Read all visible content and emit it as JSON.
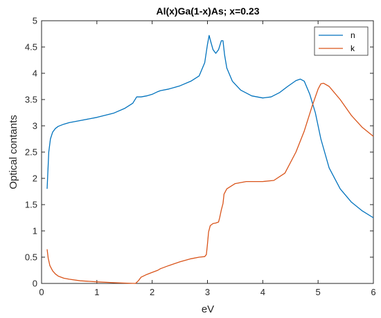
{
  "chart_data": {
    "type": "line",
    "title": "Al(x)Ga(1-x)As; x=0.23",
    "xlabel": "eV",
    "ylabel": "Optical contants",
    "xlim": [
      0,
      6
    ],
    "ylim": [
      0,
      5
    ],
    "xticks": [
      "0",
      "1",
      "2",
      "3",
      "4",
      "5",
      "6"
    ],
    "yticks": [
      "0",
      "0.5",
      "1",
      "1.5",
      "2",
      "2.5",
      "3",
      "3.5",
      "4",
      "4.5",
      "5"
    ],
    "grid": false,
    "legend_position": "top-right",
    "colors": {
      "n": "#0072BD",
      "k": "#D95319"
    },
    "series": [
      {
        "name": "n",
        "x": [
          0.1,
          0.13,
          0.16,
          0.2,
          0.25,
          0.3,
          0.4,
          0.5,
          0.7,
          1.0,
          1.3,
          1.5,
          1.65,
          1.72,
          1.8,
          1.9,
          2.0,
          2.1,
          2.15,
          2.3,
          2.5,
          2.7,
          2.85,
          2.95,
          3.0,
          3.03,
          3.06,
          3.1,
          3.15,
          3.2,
          3.25,
          3.28,
          3.31,
          3.35,
          3.45,
          3.6,
          3.8,
          4.0,
          4.15,
          4.3,
          4.45,
          4.6,
          4.68,
          4.75,
          4.85,
          4.95,
          5.05,
          5.2,
          5.4,
          5.6,
          5.8,
          6.0
        ],
        "y": [
          1.8,
          2.5,
          2.75,
          2.88,
          2.95,
          2.99,
          3.03,
          3.06,
          3.1,
          3.16,
          3.24,
          3.33,
          3.43,
          3.55,
          3.55,
          3.57,
          3.6,
          3.65,
          3.67,
          3.7,
          3.76,
          3.85,
          3.95,
          4.2,
          4.55,
          4.72,
          4.6,
          4.45,
          4.38,
          4.45,
          4.62,
          4.62,
          4.35,
          4.1,
          3.85,
          3.68,
          3.57,
          3.53,
          3.55,
          3.63,
          3.75,
          3.86,
          3.89,
          3.85,
          3.6,
          3.25,
          2.75,
          2.2,
          1.8,
          1.55,
          1.38,
          1.25
        ]
      },
      {
        "name": "k",
        "x": [
          0.1,
          0.12,
          0.15,
          0.2,
          0.25,
          0.3,
          0.4,
          0.5,
          0.7,
          1.0,
          1.3,
          1.55,
          1.7,
          1.75,
          1.8,
          1.9,
          2.0,
          2.1,
          2.15,
          2.3,
          2.5,
          2.7,
          2.85,
          2.95,
          2.98,
          3.0,
          3.02,
          3.05,
          3.1,
          3.15,
          3.2,
          3.22,
          3.25,
          3.28,
          3.3,
          3.35,
          3.5,
          3.7,
          4.0,
          4.2,
          4.4,
          4.6,
          4.75,
          4.9,
          5.0,
          5.05,
          5.1,
          5.2,
          5.4,
          5.6,
          5.8,
          6.0
        ],
        "y": [
          0.65,
          0.48,
          0.34,
          0.24,
          0.18,
          0.14,
          0.1,
          0.08,
          0.05,
          0.03,
          0.015,
          0.005,
          0.0,
          0.05,
          0.12,
          0.17,
          0.21,
          0.25,
          0.28,
          0.34,
          0.41,
          0.47,
          0.5,
          0.51,
          0.55,
          0.75,
          0.98,
          1.1,
          1.14,
          1.15,
          1.17,
          1.25,
          1.4,
          1.52,
          1.7,
          1.8,
          1.9,
          1.94,
          1.94,
          1.96,
          2.1,
          2.5,
          2.9,
          3.4,
          3.7,
          3.8,
          3.81,
          3.75,
          3.5,
          3.2,
          2.97,
          2.8
        ]
      }
    ]
  }
}
